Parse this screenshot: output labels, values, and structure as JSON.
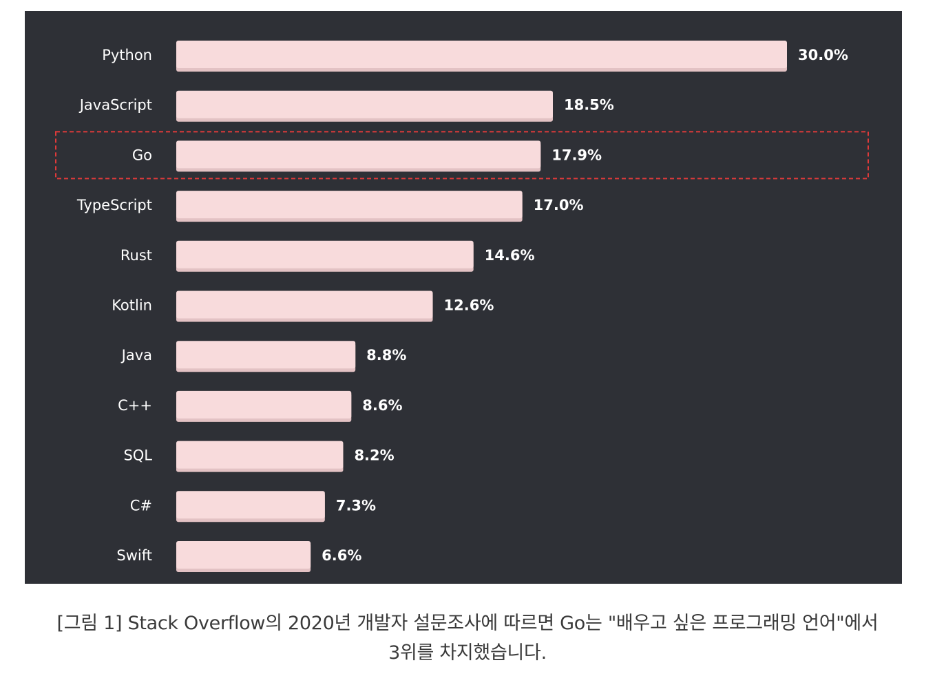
{
  "chart_data": {
    "type": "bar",
    "orientation": "horizontal",
    "categories": [
      "Python",
      "JavaScript",
      "Go",
      "TypeScript",
      "Rust",
      "Kotlin",
      "Java",
      "C++",
      "SQL",
      "C#",
      "Swift"
    ],
    "values": [
      30.0,
      18.5,
      17.9,
      17.0,
      14.6,
      12.6,
      8.8,
      8.6,
      8.2,
      7.3,
      6.6
    ],
    "value_labels": [
      "30.0%",
      "18.5%",
      "17.9%",
      "17.0%",
      "14.6%",
      "12.6%",
      "8.8%",
      "8.6%",
      "8.2%",
      "7.3%",
      "6.6%"
    ],
    "xlim": [
      0,
      30.0
    ],
    "highlighted_category": "Go",
    "grid": false,
    "legend": "none",
    "colors": {
      "background": "#2e3036",
      "bar": "#f8dbdc",
      "bar_shadow": "#e3c2c4",
      "label_text": "#ffffff",
      "highlight_border": "#e03a3a"
    }
  },
  "caption": {
    "line1": "[그림 1] Stack Overflow의 2020년 개발자 설문조사에 따르면 Go는 \"배우고 싶은 프로그래밍 언어\"에서",
    "line2": "3위를 차지했습니다."
  }
}
